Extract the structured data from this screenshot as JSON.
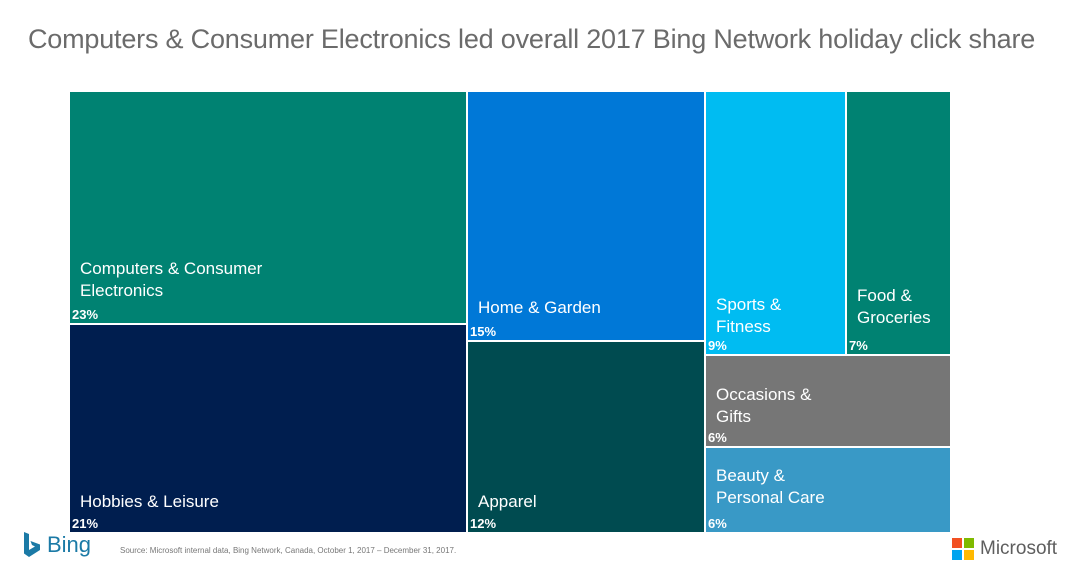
{
  "title": "Computers & Consumer Electronics led overall 2017 Bing Network holiday click share",
  "chart_data": {
    "type": "treemap",
    "title": "Computers & Consumer Electronics led overall 2017 Bing Network holiday click share",
    "items": [
      {
        "name": "Computers & Consumer\nElectronics",
        "value_label": "23%",
        "value": 23,
        "color": "#008272"
      },
      {
        "name": "Hobbies & Leisure",
        "value_label": "21%",
        "value": 21,
        "color": "#001e4f"
      },
      {
        "name": "Home & Garden",
        "value_label": "15%",
        "value": 15,
        "color": "#0078d7"
      },
      {
        "name": "Apparel",
        "value_label": "12%",
        "value": 12,
        "color": "#004b50"
      },
      {
        "name": "Sports &\nFitness",
        "value_label": "9%",
        "value": 9,
        "color": "#00bcf2"
      },
      {
        "name": "Food &\nGroceries",
        "value_label": "7%",
        "value": 7,
        "color": "#008272"
      },
      {
        "name": "Occasions &\nGifts",
        "value_label": "6%",
        "value": 6,
        "color": "#767676"
      },
      {
        "name": "Beauty &\nPersonal Care",
        "value_label": "6%",
        "value": 6,
        "color": "#3999c6"
      }
    ]
  },
  "footer": {
    "bing_logo_text": "Bing",
    "source": "Source: Microsoft internal data, Bing Network, Canada, October 1, 2017 – December 31, 2017.",
    "microsoft_logo_text": "Microsoft"
  }
}
